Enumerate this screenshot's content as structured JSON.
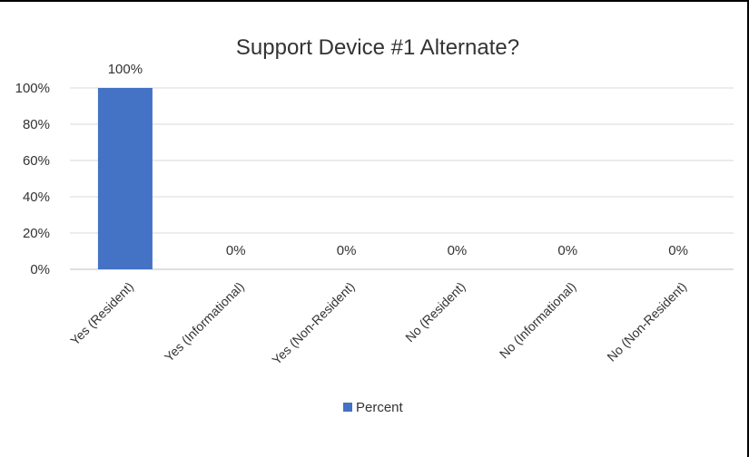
{
  "chart_data": {
    "type": "bar",
    "title": "Support Device #1 Alternate?",
    "categories": [
      "Yes (Resident)",
      "Yes (Informational)",
      "Yes (Non-Resident)",
      "No (Resident)",
      "No (Informational)",
      "No (Non-Resident)"
    ],
    "series": [
      {
        "name": "Percent",
        "values": [
          100,
          0,
          0,
          0,
          0,
          0
        ],
        "data_labels": [
          "100%",
          "0%",
          "0%",
          "0%",
          "0%",
          "0%"
        ],
        "color": "#4472c4"
      }
    ],
    "ylim": [
      0,
      100
    ],
    "y_ticks": [
      0,
      20,
      40,
      60,
      80,
      100
    ],
    "y_tick_labels": [
      "0%",
      "20%",
      "40%",
      "60%",
      "80%",
      "100%"
    ],
    "xlabel": "",
    "ylabel": "",
    "grid": true,
    "legend_position": "bottom"
  }
}
